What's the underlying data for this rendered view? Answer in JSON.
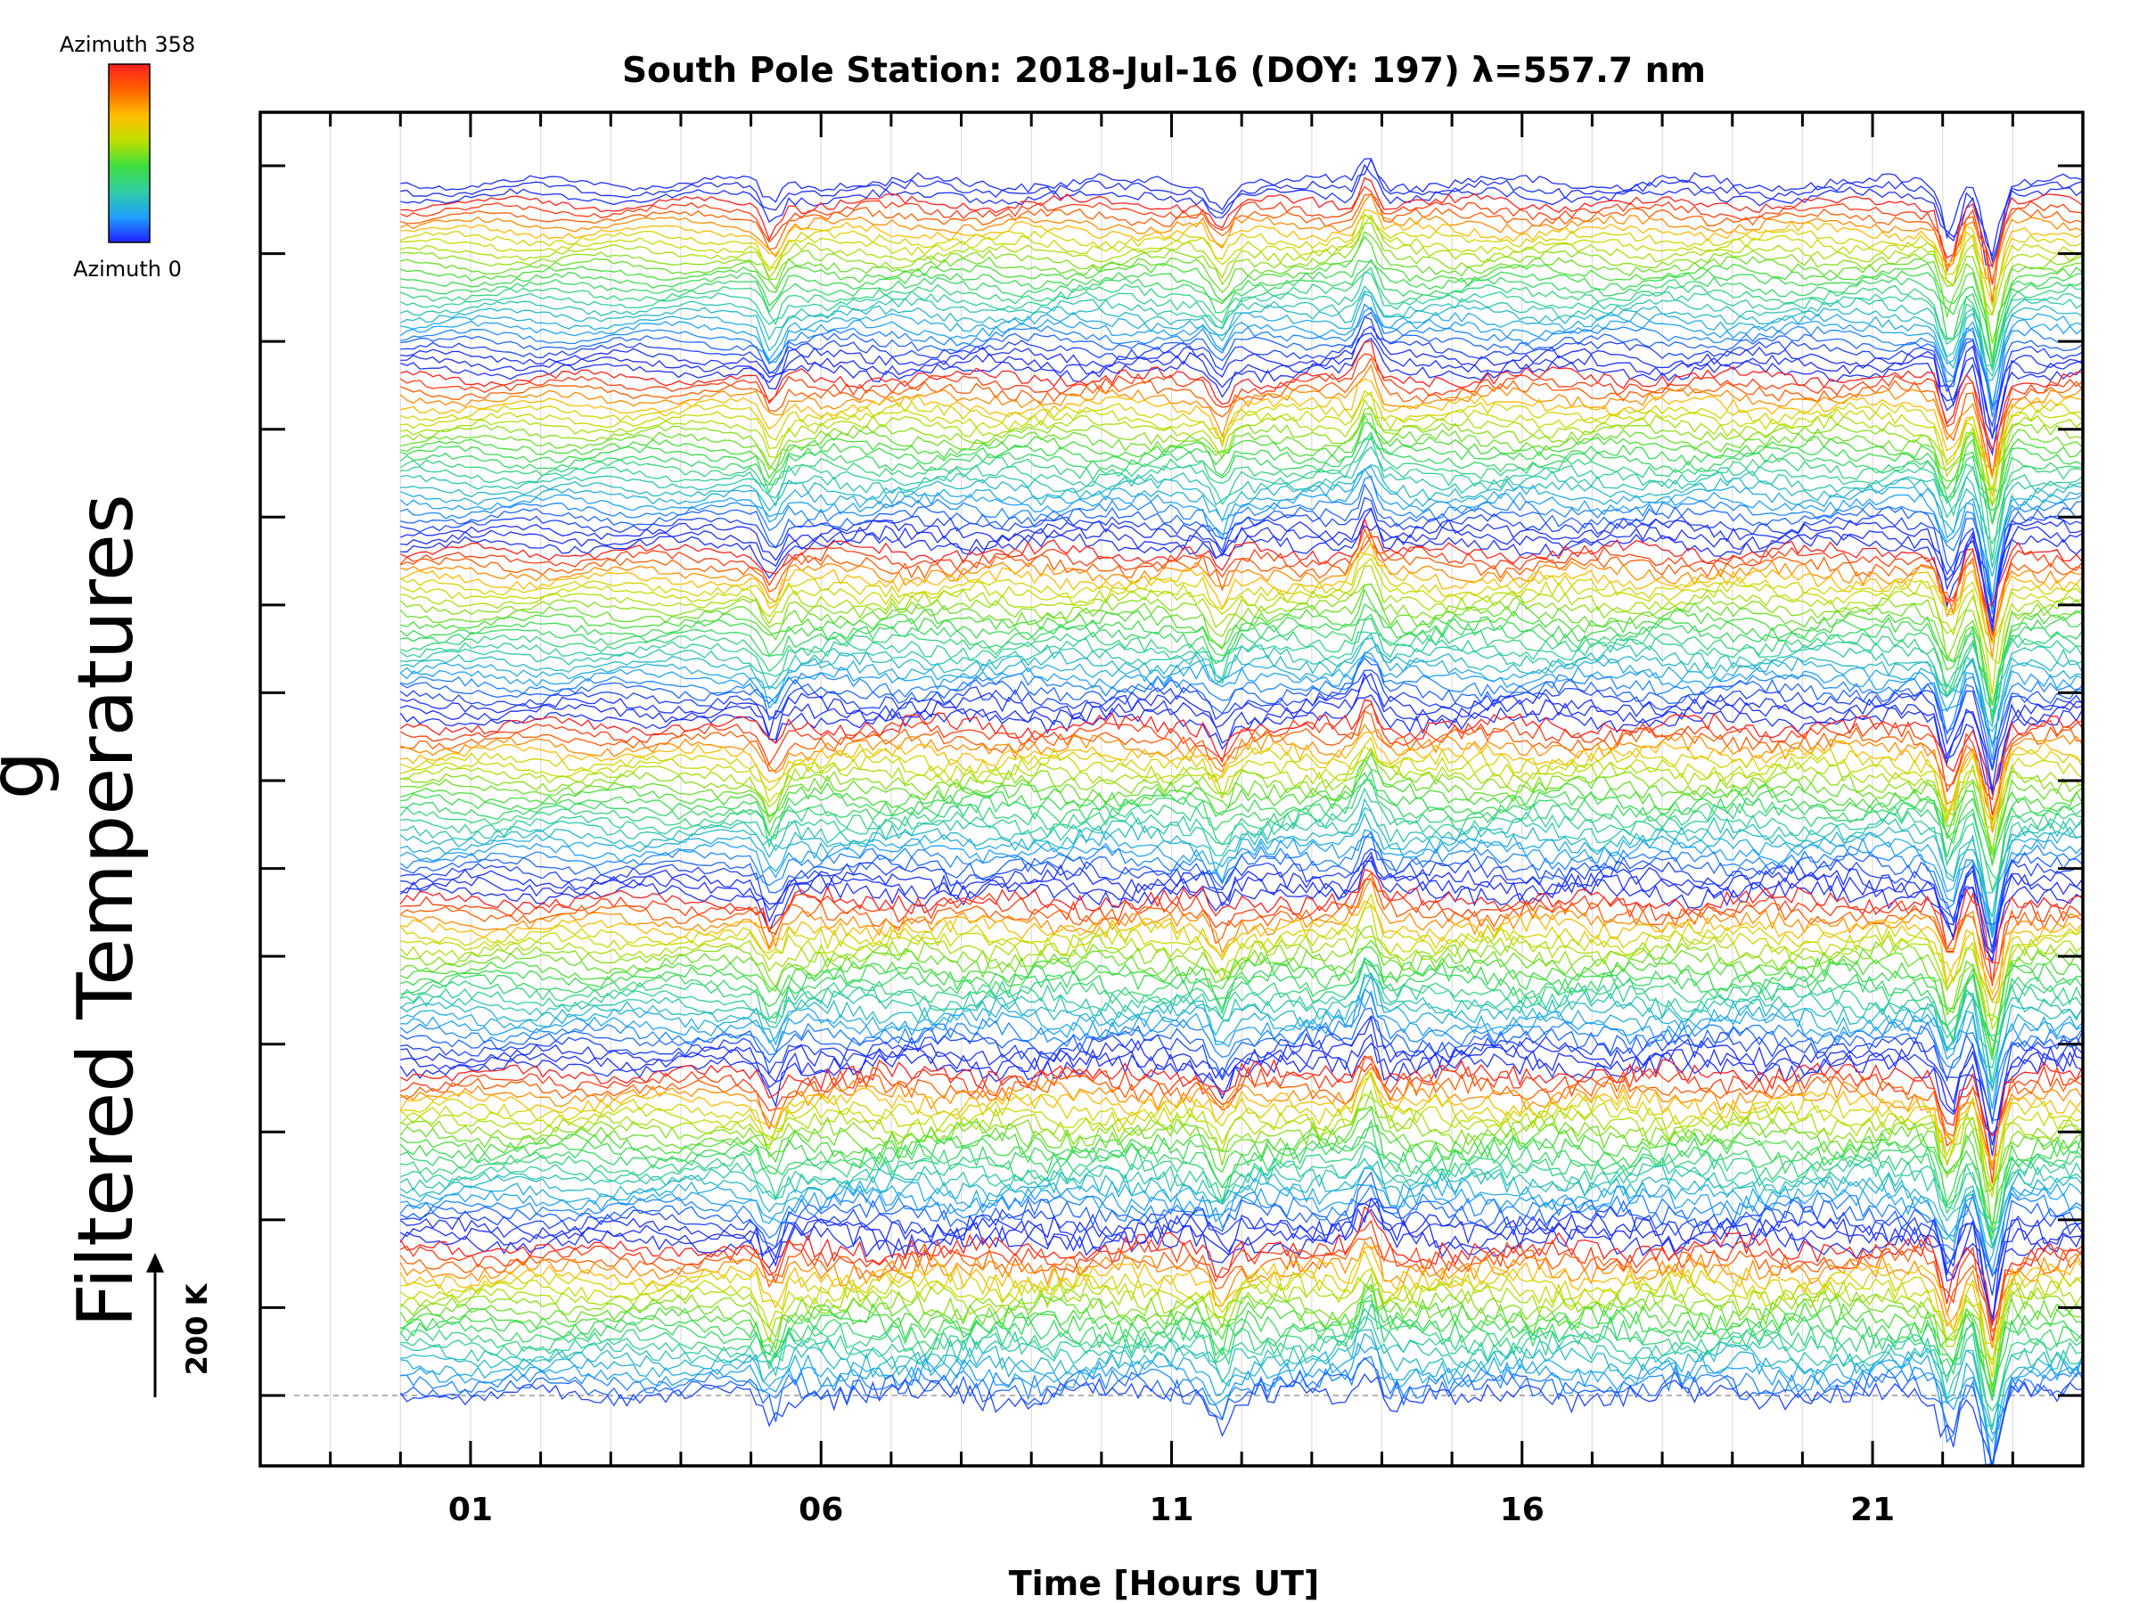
{
  "chart_data": {
    "type": "line",
    "title": "South Pole Station: 2018-Jul-16 (DOY: 197) λ=557.7 nm",
    "xlabel": "Time [Hours UT]",
    "ylabel": "Filtered Temperatures",
    "ylabel_partial": "g",
    "x_tick_labels": [
      "01",
      "06",
      "11",
      "16",
      "21"
    ],
    "x_tick_values": [
      1,
      6,
      11,
      16,
      21
    ],
    "xlim": [
      -2,
      24
    ],
    "data_start_hour": 0,
    "data_end_hour": 24,
    "grid": true,
    "colorbar": {
      "top_label": "Azimuth 358",
      "bottom_label": "Azimuth 0",
      "min": 0,
      "max": 358,
      "colormap": [
        "#1f1fff",
        "#1f9fff",
        "#2fcf9f",
        "#3fdf3f",
        "#bfdf00",
        "#ffbf00",
        "#ff5f00",
        "#ff1f1f"
      ]
    },
    "scale_bar": {
      "label": "200 K",
      "value_K": 200
    },
    "stack_groups": 7,
    "lines_per_group": 25,
    "colors": {
      "axis": "#000000",
      "grid": "#dddddd",
      "baseline": "#999999"
    }
  }
}
